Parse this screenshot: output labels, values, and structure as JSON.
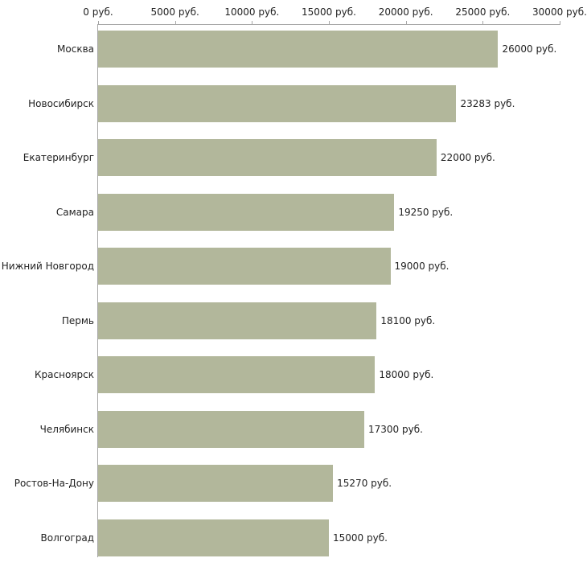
{
  "chart_data": {
    "type": "bar",
    "orientation": "horizontal",
    "title": "",
    "xlabel": "",
    "ylabel": "",
    "grid": false,
    "legend": false,
    "background": "#ffffff",
    "bar_color": "#b2b79b",
    "axis_color": "#a6a6a6",
    "text_color": "#222222",
    "categories": [
      "Москва",
      "Новосибирск",
      "Екатеринбург",
      "Самара",
      "Нижний Новгород",
      "Пермь",
      "Красноярск",
      "Челябинск",
      "Ростов-На-Дону",
      "Волгоград"
    ],
    "values": [
      26000,
      23283,
      22000,
      19250,
      19000,
      18100,
      18000,
      17300,
      15270,
      15000
    ],
    "value_labels": [
      "26000 руб.",
      "23283 руб.",
      "22000 руб.",
      "19250 руб.",
      "19000 руб.",
      "18100 руб.",
      "18000 руб.",
      "17300 руб.",
      "15270 руб.",
      "15000 руб."
    ],
    "x_axis": {
      "position": "top",
      "min": 0,
      "max": 30000,
      "ticks": [
        0,
        5000,
        10000,
        15000,
        20000,
        25000,
        30000
      ],
      "tick_labels": [
        "0 руб.",
        "5000 руб.",
        "10000 руб.",
        "15000 руб.",
        "20000 руб.",
        "25000 руб.",
        "30000 руб."
      ]
    }
  }
}
